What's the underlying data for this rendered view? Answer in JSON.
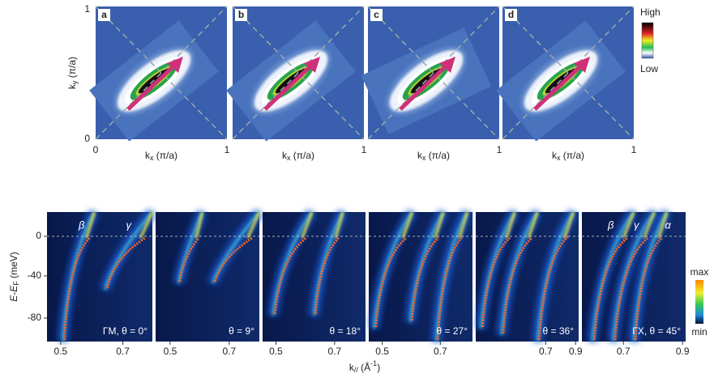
{
  "top": {
    "panels": [
      "a",
      "b",
      "c",
      "d"
    ],
    "y_axis": {
      "k": "k",
      "sub": "y",
      "unit": " (π/a)"
    },
    "x_axis": {
      "k": "k",
      "sub": "x",
      "unit": " (π/a)"
    },
    "y_ticks": [
      "0",
      "1"
    ],
    "x_ticks": [
      "0",
      "1"
    ],
    "colorbar": {
      "high": "High",
      "low": "Low"
    }
  },
  "bottom": {
    "y_axis": {
      "main": "E-E",
      "sub": "F",
      "unit": " (meV)"
    },
    "y_ticks": [
      "0",
      "-40",
      "-80"
    ],
    "x_axis": {
      "main": "k",
      "sub": "//",
      "open": " (Å",
      "sup": "-1",
      "close": ")"
    },
    "panels": [
      {
        "annotation": "ΓM, θ = 0°",
        "bands": [
          "β",
          "γ"
        ],
        "x_ticks": [
          "0.5",
          "0.7"
        ]
      },
      {
        "annotation": "θ = 9°",
        "bands": [],
        "x_ticks": [
          "0.5",
          "0.7"
        ]
      },
      {
        "annotation": "θ = 18°",
        "bands": [],
        "x_ticks": [
          "0.5",
          "0.7"
        ]
      },
      {
        "annotation": "θ = 27°",
        "bands": [],
        "x_ticks": [
          "0.5",
          "0.7"
        ]
      },
      {
        "annotation": "θ = 36°",
        "bands": [],
        "x_ticks": [
          "0.7",
          "0.9"
        ]
      },
      {
        "annotation": "ΓX, θ = 45°",
        "bands": [
          "β",
          "γ",
          "α"
        ],
        "x_ticks": [
          "0.7",
          "0.9"
        ]
      }
    ],
    "colorbar": {
      "max": "max",
      "min": "min"
    }
  }
}
